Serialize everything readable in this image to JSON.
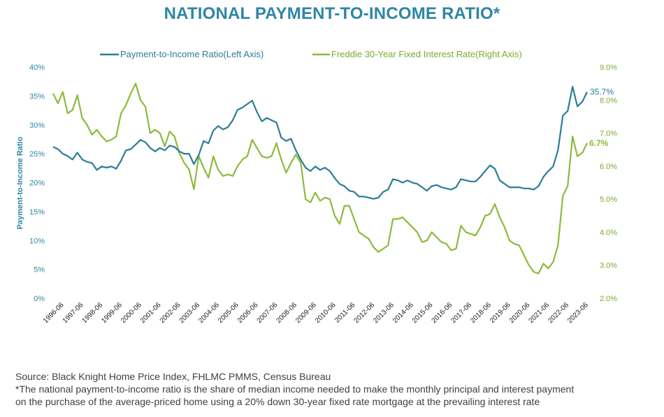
{
  "title": "NATIONAL PAYMENT-TO-INCOME RATIO*",
  "colors": {
    "title": "#2e86a4",
    "ratio": "#2b7d96",
    "rate": "#8cba3c",
    "axis_left": "#2e86a4",
    "axis_right": "#7aab2e"
  },
  "chart_data": {
    "type": "line",
    "title": "NATIONAL PAYMENT-TO-INCOME RATIO*",
    "ylabel": "Payment-to-Income Ratio",
    "legend_position": "top",
    "grid": false,
    "x_tick_labels": [
      "1996-06",
      "1997-06",
      "1998-06",
      "1999-06",
      "2000-06",
      "2001-06",
      "2002-06",
      "2003-06",
      "2004-06",
      "2005-06",
      "2006-06",
      "2007-06",
      "2008-06",
      "2009-06",
      "2010-06",
      "2011-06",
      "2012-06",
      "2013-06",
      "2014-06",
      "2015-06",
      "2016-06",
      "2017-06",
      "2018-06",
      "2019-06",
      "2020-06",
      "2021-06",
      "2022-06",
      "2023-06"
    ],
    "y_left": {
      "ticks": [
        "0%",
        "5%",
        "10%",
        "15%",
        "20%",
        "25%",
        "30%",
        "35%",
        "40%"
      ],
      "range": [
        0,
        40
      ]
    },
    "y_right": {
      "ticks": [
        "2.0%",
        "3.0%",
        "4.0%",
        "5.0%",
        "6.0%",
        "7.0%",
        "8.0%",
        "9.0%"
      ],
      "range": [
        2.0,
        9.0
      ]
    },
    "series": [
      {
        "name": "Payment-to-Income Ratio(Left Axis)",
        "axis": "left",
        "end_label": "35.7%",
        "points": [
          [
            "1996-01",
            26.2
          ],
          [
            "1996-04",
            25.8
          ],
          [
            "1996-07",
            25.0
          ],
          [
            "1996-10",
            24.6
          ],
          [
            "1997-01",
            24.0
          ],
          [
            "1997-04",
            25.2
          ],
          [
            "1997-07",
            24.0
          ],
          [
            "1997-10",
            23.6
          ],
          [
            "1998-01",
            23.4
          ],
          [
            "1998-04",
            22.2
          ],
          [
            "1998-07",
            22.8
          ],
          [
            "1998-10",
            22.6
          ],
          [
            "1999-01",
            22.8
          ],
          [
            "1999-04",
            22.4
          ],
          [
            "1999-07",
            23.8
          ],
          [
            "1999-10",
            25.6
          ],
          [
            "2000-01",
            25.8
          ],
          [
            "2000-04",
            26.6
          ],
          [
            "2000-07",
            27.4
          ],
          [
            "2000-10",
            27.0
          ],
          [
            "2001-01",
            26.0
          ],
          [
            "2001-04",
            25.4
          ],
          [
            "2001-07",
            26.0
          ],
          [
            "2001-10",
            25.6
          ],
          [
            "2002-01",
            26.4
          ],
          [
            "2002-04",
            26.2
          ],
          [
            "2002-07",
            25.4
          ],
          [
            "2002-10",
            25.0
          ],
          [
            "2003-01",
            25.0
          ],
          [
            "2003-04",
            23.2
          ],
          [
            "2003-07",
            24.8
          ],
          [
            "2003-10",
            27.2
          ],
          [
            "2004-01",
            26.8
          ],
          [
            "2004-04",
            29.0
          ],
          [
            "2004-07",
            29.8
          ],
          [
            "2004-10",
            29.2
          ],
          [
            "2005-01",
            29.6
          ],
          [
            "2005-04",
            30.8
          ],
          [
            "2005-07",
            32.6
          ],
          [
            "2005-10",
            33.0
          ],
          [
            "2006-01",
            33.6
          ],
          [
            "2006-04",
            34.2
          ],
          [
            "2006-07",
            32.2
          ],
          [
            "2006-10",
            30.6
          ],
          [
            "2007-01",
            31.2
          ],
          [
            "2007-04",
            30.8
          ],
          [
            "2007-07",
            30.4
          ],
          [
            "2007-10",
            27.8
          ],
          [
            "2008-01",
            27.2
          ],
          [
            "2008-04",
            27.6
          ],
          [
            "2008-07",
            25.6
          ],
          [
            "2008-10",
            24.0
          ],
          [
            "2009-01",
            22.6
          ],
          [
            "2009-04",
            22.0
          ],
          [
            "2009-07",
            22.8
          ],
          [
            "2009-10",
            22.2
          ],
          [
            "2010-01",
            22.6
          ],
          [
            "2010-04",
            22.0
          ],
          [
            "2010-07",
            20.8
          ],
          [
            "2010-10",
            19.8
          ],
          [
            "2011-01",
            19.4
          ],
          [
            "2011-04",
            18.6
          ],
          [
            "2011-07",
            18.4
          ],
          [
            "2011-10",
            17.6
          ],
          [
            "2012-01",
            17.6
          ],
          [
            "2012-04",
            17.4
          ],
          [
            "2012-07",
            17.2
          ],
          [
            "2012-10",
            17.4
          ],
          [
            "2013-01",
            18.4
          ],
          [
            "2013-04",
            18.8
          ],
          [
            "2013-07",
            20.6
          ],
          [
            "2013-10",
            20.4
          ],
          [
            "2014-01",
            20.0
          ],
          [
            "2014-04",
            20.4
          ],
          [
            "2014-07",
            20.0
          ],
          [
            "2014-10",
            19.8
          ],
          [
            "2015-01",
            19.2
          ],
          [
            "2015-04",
            18.6
          ],
          [
            "2015-07",
            19.4
          ],
          [
            "2015-10",
            19.6
          ],
          [
            "2016-01",
            19.2
          ],
          [
            "2016-04",
            19.0
          ],
          [
            "2016-07",
            18.8
          ],
          [
            "2016-10",
            19.2
          ],
          [
            "2017-01",
            20.6
          ],
          [
            "2017-04",
            20.4
          ],
          [
            "2017-07",
            20.2
          ],
          [
            "2017-10",
            20.2
          ],
          [
            "2018-01",
            21.0
          ],
          [
            "2018-04",
            22.0
          ],
          [
            "2018-07",
            23.0
          ],
          [
            "2018-10",
            22.4
          ],
          [
            "2019-01",
            20.4
          ],
          [
            "2019-04",
            19.8
          ],
          [
            "2019-07",
            19.2
          ],
          [
            "2019-10",
            19.2
          ],
          [
            "2020-01",
            19.2
          ],
          [
            "2020-04",
            19.0
          ],
          [
            "2020-07",
            19.0
          ],
          [
            "2020-10",
            18.8
          ],
          [
            "2021-01",
            19.4
          ],
          [
            "2021-04",
            21.0
          ],
          [
            "2021-07",
            22.0
          ],
          [
            "2021-10",
            22.8
          ],
          [
            "2022-01",
            25.6
          ],
          [
            "2022-04",
            31.6
          ],
          [
            "2022-07",
            32.4
          ],
          [
            "2022-10",
            36.6
          ],
          [
            "2023-01",
            33.2
          ],
          [
            "2023-04",
            34.0
          ],
          [
            "2023-07",
            35.7
          ]
        ]
      },
      {
        "name": "Freddie 30-Year Fixed Interest Rate(Right Axis)",
        "axis": "right",
        "end_label": "6.7%",
        "points": [
          [
            "1996-01",
            8.2
          ],
          [
            "1996-04",
            7.9
          ],
          [
            "1996-07",
            8.25
          ],
          [
            "1996-10",
            7.6
          ],
          [
            "1997-01",
            7.7
          ],
          [
            "1997-04",
            8.15
          ],
          [
            "1997-07",
            7.45
          ],
          [
            "1997-10",
            7.25
          ],
          [
            "1998-01",
            6.95
          ],
          [
            "1998-04",
            7.1
          ],
          [
            "1998-07",
            6.9
          ],
          [
            "1998-10",
            6.75
          ],
          [
            "1999-01",
            6.8
          ],
          [
            "1999-04",
            6.9
          ],
          [
            "1999-07",
            7.6
          ],
          [
            "1999-10",
            7.85
          ],
          [
            "2000-01",
            8.2
          ],
          [
            "2000-04",
            8.5
          ],
          [
            "2000-07",
            8.0
          ],
          [
            "2000-10",
            7.8
          ],
          [
            "2001-01",
            7.0
          ],
          [
            "2001-04",
            7.1
          ],
          [
            "2001-07",
            7.0
          ],
          [
            "2001-10",
            6.6
          ],
          [
            "2002-01",
            7.05
          ],
          [
            "2002-04",
            6.9
          ],
          [
            "2002-07",
            6.4
          ],
          [
            "2002-10",
            6.1
          ],
          [
            "2003-01",
            5.9
          ],
          [
            "2003-04",
            5.3
          ],
          [
            "2003-07",
            6.3
          ],
          [
            "2003-10",
            5.95
          ],
          [
            "2004-01",
            5.65
          ],
          [
            "2004-04",
            6.3
          ],
          [
            "2004-07",
            5.9
          ],
          [
            "2004-10",
            5.7
          ],
          [
            "2005-01",
            5.75
          ],
          [
            "2005-04",
            5.7
          ],
          [
            "2005-07",
            6.0
          ],
          [
            "2005-10",
            6.2
          ],
          [
            "2006-01",
            6.3
          ],
          [
            "2006-04",
            6.8
          ],
          [
            "2006-07",
            6.55
          ],
          [
            "2006-10",
            6.3
          ],
          [
            "2007-01",
            6.25
          ],
          [
            "2007-04",
            6.3
          ],
          [
            "2007-07",
            6.7
          ],
          [
            "2007-10",
            6.2
          ],
          [
            "2008-01",
            5.8
          ],
          [
            "2008-04",
            6.1
          ],
          [
            "2008-07",
            6.35
          ],
          [
            "2008-10",
            6.1
          ],
          [
            "2009-01",
            5.0
          ],
          [
            "2009-04",
            4.9
          ],
          [
            "2009-07",
            5.2
          ],
          [
            "2009-10",
            4.95
          ],
          [
            "2010-01",
            5.05
          ],
          [
            "2010-04",
            5.0
          ],
          [
            "2010-07",
            4.5
          ],
          [
            "2010-10",
            4.25
          ],
          [
            "2011-01",
            4.8
          ],
          [
            "2011-04",
            4.8
          ],
          [
            "2011-07",
            4.4
          ],
          [
            "2011-10",
            4.0
          ],
          [
            "2012-01",
            3.9
          ],
          [
            "2012-04",
            3.8
          ],
          [
            "2012-07",
            3.55
          ],
          [
            "2012-10",
            3.4
          ],
          [
            "2013-01",
            3.5
          ],
          [
            "2013-04",
            3.6
          ],
          [
            "2013-07",
            4.4
          ],
          [
            "2013-10",
            4.4
          ],
          [
            "2014-01",
            4.45
          ],
          [
            "2014-04",
            4.3
          ],
          [
            "2014-07",
            4.15
          ],
          [
            "2014-10",
            4.0
          ],
          [
            "2015-01",
            3.7
          ],
          [
            "2015-04",
            3.75
          ],
          [
            "2015-07",
            4.0
          ],
          [
            "2015-10",
            3.85
          ],
          [
            "2016-01",
            3.7
          ],
          [
            "2016-04",
            3.65
          ],
          [
            "2016-07",
            3.45
          ],
          [
            "2016-10",
            3.5
          ],
          [
            "2017-01",
            4.2
          ],
          [
            "2017-04",
            4.0
          ],
          [
            "2017-07",
            3.95
          ],
          [
            "2017-10",
            3.9
          ],
          [
            "2018-01",
            4.15
          ],
          [
            "2018-04",
            4.5
          ],
          [
            "2018-07",
            4.55
          ],
          [
            "2018-10",
            4.85
          ],
          [
            "2019-01",
            4.45
          ],
          [
            "2019-04",
            4.15
          ],
          [
            "2019-07",
            3.75
          ],
          [
            "2019-10",
            3.65
          ],
          [
            "2020-01",
            3.6
          ],
          [
            "2020-04",
            3.3
          ],
          [
            "2020-07",
            3.0
          ],
          [
            "2020-10",
            2.8
          ],
          [
            "2021-01",
            2.75
          ],
          [
            "2021-04",
            3.05
          ],
          [
            "2021-07",
            2.9
          ],
          [
            "2021-10",
            3.1
          ],
          [
            "2022-01",
            3.6
          ],
          [
            "2022-04",
            5.1
          ],
          [
            "2022-07",
            5.4
          ],
          [
            "2022-10",
            6.9
          ],
          [
            "2023-01",
            6.3
          ],
          [
            "2023-04",
            6.4
          ],
          [
            "2023-07",
            6.7
          ]
        ]
      }
    ]
  },
  "footer": {
    "source": "Source: Black Knight Home Price Index, FHLMC PMMS, Census Bureau",
    "note_line1": "*The national payment-to-income ratio is the share of median income needed to make the monthly principal and interest payment",
    "note_line2": "on the purchase of the average-priced home using a 20% down 30-year fixed rate mortgage at the prevailing interest rate"
  }
}
